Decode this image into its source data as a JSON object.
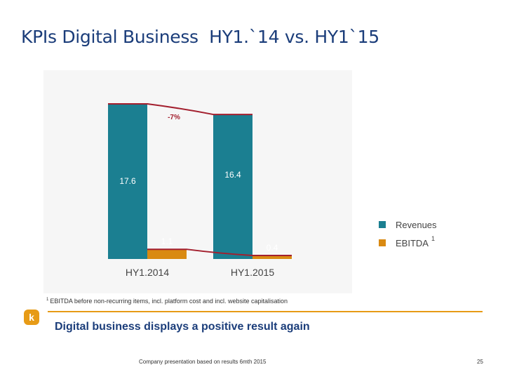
{
  "slide": {
    "title": "KPIs Digital Business  HY1.`14 vs. HY1`15",
    "footnote_marker": "1",
    "footnote": "EBITDA before non-recurring items, incl. platform cost and incl. website capitalisation",
    "logo_letter": "k",
    "conclusion": "Digital business displays a positive result again",
    "source": "Company presentation based on results 6mth 2015",
    "page_number": "25"
  },
  "chart_data": {
    "type": "bar",
    "categories": [
      "HY1.2014",
      "HY1.2015"
    ],
    "series": [
      {
        "name": "Revenues",
        "values": [
          17.6,
          16.4
        ],
        "color": "#1b7f91"
      },
      {
        "name": "EBITDA",
        "name_superscript": "1",
        "values": [
          1.1,
          0.4
        ],
        "color": "#d98a12"
      }
    ],
    "value_labels": [
      [
        "17.6",
        "16.4"
      ],
      [
        "1.1",
        "0.4"
      ]
    ],
    "annotation": "-7%",
    "ylim": [
      0,
      20
    ],
    "grid": false,
    "legend_position": "right",
    "colors": {
      "connector": "#a31f2e",
      "label_text": "#ffffff"
    }
  }
}
